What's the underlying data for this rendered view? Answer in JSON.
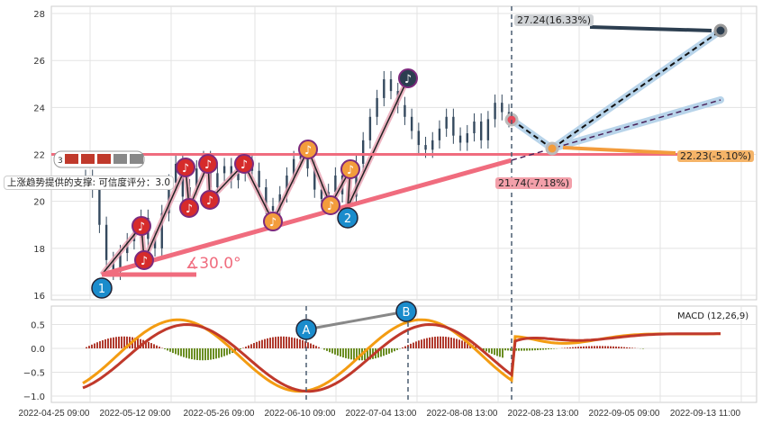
{
  "chart_data": {
    "type": "candlestick-with-annotations",
    "main": {
      "ylim": [
        15.8,
        28.3
      ],
      "yticks": [
        16,
        18,
        20,
        22,
        24,
        26,
        28
      ],
      "closes": [
        21,
        20.5,
        19,
        17.5,
        17,
        17.8,
        18.3,
        18.8,
        19.3,
        18.4,
        18,
        19.5,
        20.8,
        21.6,
        20.2,
        20.6,
        21.4,
        21.8,
        20.6,
        21.2,
        21.5,
        20.9,
        21.2,
        21.6,
        21.3,
        20.6,
        19.8,
        19.6,
        20.3,
        21.1,
        21.8,
        22.1,
        21.4,
        20.5,
        20.1,
        20.4,
        21.1,
        20.3,
        20.2,
        21.6,
        22.6,
        23.6,
        24.4,
        25.2,
        24.7,
        24.1,
        23.6,
        23,
        22.4,
        22.2,
        22.6,
        23.1,
        23.6,
        22.8,
        22.5,
        22.9,
        23.4,
        22.6,
        23.5,
        24.2,
        23.8,
        23.5
      ],
      "support_line_price": 22.0,
      "trend_angle_label": "∡30.0°",
      "support_label": "上涨趋势提供的支撑: 可信度评分：3.0",
      "pattern_label_prefix": "3",
      "forecast": {
        "high": {
          "label": "27.24(16.33%)",
          "value": 27.24
        },
        "mid": {
          "label": "22.23(-5.10%)",
          "value": 22.23
        },
        "low": {
          "label": "21.74(-7.18%)",
          "value": 21.74
        }
      },
      "markers": [
        {
          "text": "1"
        },
        {
          "text": "2"
        }
      ]
    },
    "macd": {
      "title": "MACD (12,26,9)",
      "ylim": [
        -1.1,
        0.7
      ],
      "yticks": [
        0.5,
        0.0,
        -0.5,
        -1.0
      ],
      "ytick_labels": [
        "0.5",
        "0.0",
        "−0.5",
        "−1.0"
      ],
      "markers": [
        {
          "text": "A"
        },
        {
          "text": "B"
        }
      ]
    },
    "xticks": [
      "2022-04-25 09:00",
      "2022-05-12 09:00",
      "2022-05-26 09:00",
      "2022-06-10 09:00",
      "2022-07-04 13:00",
      "2022-08-08 13:00",
      "2022-08-23 13:00",
      "2022-09-05 09:00",
      "2022-09-13 11:00"
    ],
    "colors": {
      "up": "#c0392b",
      "support": "#f06c7e",
      "forecast": "#b8d4ea",
      "dark": "#2c3e50",
      "orange": "#f39c3c",
      "blue": "#1a8ccc"
    }
  }
}
